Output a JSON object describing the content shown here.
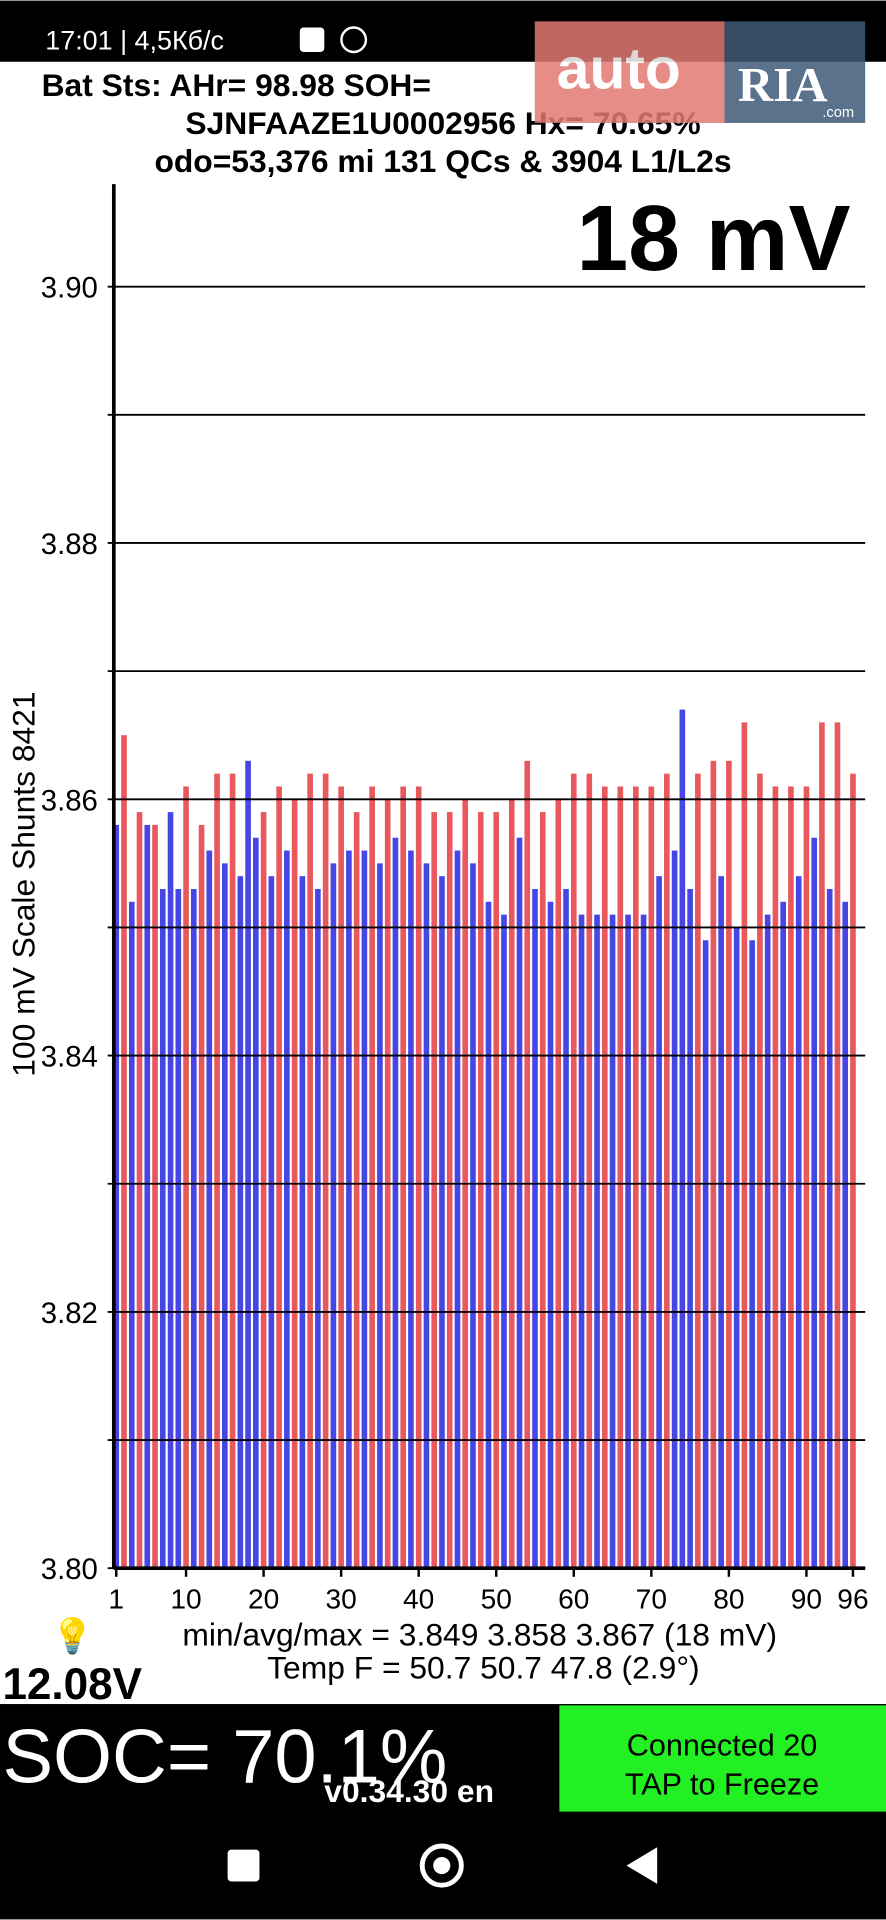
{
  "status_bar": {
    "time": "17:01 | 4,5Кб/с"
  },
  "watermark": {
    "brand": "auto",
    "brand2": "RIA",
    "domain": ".com"
  },
  "header": {
    "line1": "Bat Sts:  AHr= 98.98  SOH=",
    "line2": "SJNFAAZE1U0002956   Hx= 70.65%",
    "line3": "odo=53,376 mi  131 QCs & 3904 L1/L2s"
  },
  "chart_data": {
    "type": "bar",
    "spread_label": "18 mV",
    "y_label": "100 mV Scale   Shunts 8421",
    "x": [
      1,
      2,
      3,
      4,
      5,
      6,
      7,
      8,
      9,
      10,
      11,
      12,
      13,
      14,
      15,
      16,
      17,
      18,
      19,
      20,
      21,
      22,
      23,
      24,
      25,
      26,
      27,
      28,
      29,
      30,
      31,
      32,
      33,
      34,
      35,
      36,
      37,
      38,
      39,
      40,
      41,
      42,
      43,
      44,
      45,
      46,
      47,
      48,
      49,
      50,
      51,
      52,
      53,
      54,
      55,
      56,
      57,
      58,
      59,
      60,
      61,
      62,
      63,
      64,
      65,
      66,
      67,
      68,
      69,
      70,
      71,
      72,
      73,
      74,
      75,
      76,
      77,
      78,
      79,
      80,
      81,
      82,
      83,
      84,
      85,
      86,
      87,
      88,
      89,
      90,
      91,
      92,
      93,
      94,
      95,
      96
    ],
    "values": [
      3.858,
      3.865,
      3.852,
      3.859,
      3.858,
      3.858,
      3.853,
      3.859,
      3.853,
      3.861,
      3.853,
      3.858,
      3.856,
      3.862,
      3.855,
      3.862,
      3.854,
      3.863,
      3.857,
      3.859,
      3.854,
      3.861,
      3.856,
      3.86,
      3.854,
      3.862,
      3.853,
      3.862,
      3.855,
      3.861,
      3.856,
      3.859,
      3.856,
      3.861,
      3.855,
      3.86,
      3.857,
      3.861,
      3.856,
      3.861,
      3.855,
      3.859,
      3.854,
      3.859,
      3.856,
      3.86,
      3.855,
      3.859,
      3.852,
      3.859,
      3.851,
      3.86,
      3.857,
      3.863,
      3.853,
      3.859,
      3.852,
      3.86,
      3.853,
      3.862,
      3.851,
      3.862,
      3.851,
      3.861,
      3.851,
      3.861,
      3.851,
      3.861,
      3.851,
      3.861,
      3.854,
      3.862,
      3.856,
      3.867,
      3.853,
      3.862,
      3.849,
      3.863,
      3.854,
      3.863,
      3.85,
      3.866,
      3.849,
      3.862,
      3.851,
      3.861,
      3.852,
      3.861,
      3.854,
      3.861,
      3.857,
      3.866,
      3.853,
      3.866,
      3.852,
      3.862
    ],
    "colors": [
      "#4646e6",
      "#e8585c",
      "#4646e6",
      "#e8585c",
      "#4646e6",
      "#e8585c",
      "#4646e6",
      "#4646e6",
      "#4646e6",
      "#e8585c",
      "#4646e6",
      "#e8585c",
      "#4646e6",
      "#e8585c",
      "#4646e6",
      "#e8585c",
      "#4646e6",
      "#4646e6",
      "#4646e6",
      "#e8585c",
      "#4646e6",
      "#e8585c",
      "#4646e6",
      "#e8585c",
      "#4646e6",
      "#e8585c",
      "#4646e6",
      "#e8585c",
      "#4646e6",
      "#e8585c",
      "#4646e6",
      "#e8585c",
      "#4646e6",
      "#e8585c",
      "#4646e6",
      "#e8585c",
      "#4646e6",
      "#e8585c",
      "#4646e6",
      "#e8585c",
      "#4646e6",
      "#e8585c",
      "#4646e6",
      "#e8585c",
      "#4646e6",
      "#e8585c",
      "#4646e6",
      "#e8585c",
      "#4646e6",
      "#e8585c",
      "#4646e6",
      "#e8585c",
      "#4646e6",
      "#e8585c",
      "#4646e6",
      "#e8585c",
      "#4646e6",
      "#e8585c",
      "#4646e6",
      "#e8585c",
      "#4646e6",
      "#e8585c",
      "#4646e6",
      "#e8585c",
      "#4646e6",
      "#e8585c",
      "#4646e6",
      "#e8585c",
      "#4646e6",
      "#e8585c",
      "#4646e6",
      "#e8585c",
      "#4646e6",
      "#4646e6",
      "#4646e6",
      "#e8585c",
      "#4646e6",
      "#e8585c",
      "#4646e6",
      "#e8585c",
      "#4646e6",
      "#e8585c",
      "#4646e6",
      "#e8585c",
      "#4646e6",
      "#e8585c",
      "#4646e6",
      "#e8585c",
      "#4646e6",
      "#e8585c",
      "#4646e6",
      "#e8585c",
      "#4646e6",
      "#e8585c",
      "#4646e6",
      "#e8585c"
    ],
    "xlim": [
      1,
      96
    ],
    "xticks": [
      1,
      10,
      20,
      30,
      40,
      50,
      60,
      70,
      80,
      90,
      96
    ],
    "ylim": [
      3.8,
      3.908
    ],
    "yticks": [
      {
        "value": 3.8,
        "label": "3.80"
      },
      3.82,
      3.84,
      3.86,
      3.88,
      {
        "value": 3.9,
        "label": "3.90"
      }
    ],
    "minor_yticks": [
      3.81,
      3.83,
      3.85,
      3.87,
      3.89
    ],
    "grid": true
  },
  "stats": {
    "minmax": "min/avg/max = 3.849 3.858 3.867  (18 mV)",
    "temp": "Temp F = 50.7  50.7  47.8  (2.9°)"
  },
  "footer": {
    "voltage": "12.08V",
    "soc": "SOC= 70.1%",
    "version": "v0.34.30 en",
    "button_line1": "Connected 20",
    "button_line2": "TAP to Freeze"
  }
}
